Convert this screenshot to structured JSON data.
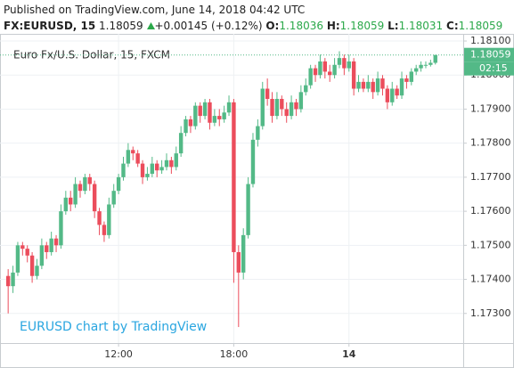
{
  "header": {
    "published": "Published on TradingView.com, June 14, 2018 04:42 UTC",
    "symbol": "FX:EURUSD, 15",
    "price": "1.18059",
    "change": "+0.00145 (+0.12%)",
    "ohlc": [
      {
        "label": "O:",
        "value": "1.18036"
      },
      {
        "label": "H:",
        "value": "1.18059"
      },
      {
        "label": "L:",
        "value": "1.18031"
      },
      {
        "label": "C:",
        "value": "1.18059"
      }
    ]
  },
  "chart_data": {
    "type": "candlestick",
    "legend": "Euro Fx/U.S. Dollar, 15, FXCM",
    "watermark": "EURUSD chart by TradingView",
    "up_color": "#53b987",
    "down_color": "#eb4d5c",
    "open": [
      1.1741,
      1.1738,
      1.1742,
      1.175,
      1.1749,
      1.1747,
      1.1741,
      1.1744,
      1.175,
      1.1748,
      1.1752,
      1.175,
      1.176,
      1.1764,
      1.1762,
      1.1768,
      1.1766,
      1.177,
      1.1768,
      1.176,
      1.1756,
      1.1753,
      1.1762,
      1.1766,
      1.177,
      1.1774,
      1.1778,
      1.1777,
      1.1774,
      1.177,
      1.1771,
      1.1774,
      1.1772,
      1.1773,
      1.1775,
      1.1773,
      1.1777,
      1.1783,
      1.1787,
      1.1785,
      1.1791,
      1.1788,
      1.1792,
      1.1786,
      1.1788,
      1.1787,
      1.1789,
      1.1792,
      1.1748,
      1.1742,
      1.1753,
      1.1768,
      1.1781,
      1.1785,
      1.1796,
      1.1793,
      1.1788,
      1.1793,
      1.179,
      1.1788,
      1.1792,
      1.179,
      1.1795,
      1.1797,
      1.1802,
      1.18,
      1.1804,
      1.1801,
      1.18,
      1.1803,
      1.1805,
      1.1802,
      1.1804,
      1.1796,
      1.1798,
      1.1796,
      1.1798,
      1.1795,
      1.1799,
      1.1796,
      1.1792,
      1.1796,
      1.1794,
      1.1799,
      1.1798,
      1.1801,
      1.1802,
      1.1803,
      1.1803,
      1.18036
    ],
    "high": [
      1.1743,
      1.1744,
      1.1751,
      1.1751,
      1.175,
      1.1748,
      1.1746,
      1.1752,
      1.1751,
      1.1754,
      1.1753,
      1.1762,
      1.1766,
      1.1766,
      1.177,
      1.1769,
      1.1771,
      1.1771,
      1.1769,
      1.1761,
      1.1757,
      1.1764,
      1.1768,
      1.1771,
      1.1776,
      1.178,
      1.1779,
      1.1778,
      1.1775,
      1.1773,
      1.1776,
      1.1775,
      1.1775,
      1.1777,
      1.1776,
      1.1779,
      1.1785,
      1.1788,
      1.1788,
      1.1792,
      1.1792,
      1.1793,
      1.1793,
      1.179,
      1.179,
      1.1791,
      1.1794,
      1.1793,
      1.175,
      1.1755,
      1.177,
      1.1783,
      1.1787,
      1.1798,
      1.1799,
      1.1795,
      1.1795,
      1.1794,
      1.1792,
      1.1794,
      1.1793,
      1.1797,
      1.1799,
      1.1803,
      1.1803,
      1.1806,
      1.1805,
      1.1803,
      1.1805,
      1.1807,
      1.1806,
      1.1806,
      1.1805,
      1.18,
      1.1799,
      1.18,
      1.1799,
      1.1801,
      1.18,
      1.1797,
      1.1798,
      1.1797,
      1.1801,
      1.18,
      1.1802,
      1.1803,
      1.1804,
      1.1804,
      1.18045,
      1.18059
    ],
    "low": [
      1.173,
      1.1736,
      1.1741,
      1.1747,
      1.1745,
      1.1739,
      1.174,
      1.1743,
      1.1746,
      1.1747,
      1.1748,
      1.1749,
      1.1759,
      1.176,
      1.1761,
      1.1764,
      1.1765,
      1.1766,
      1.1758,
      1.1753,
      1.1751,
      1.1752,
      1.1761,
      1.1765,
      1.1769,
      1.1773,
      1.1775,
      1.1773,
      1.1768,
      1.1769,
      1.177,
      1.177,
      1.1771,
      1.1772,
      1.1771,
      1.1772,
      1.1776,
      1.1782,
      1.1783,
      1.1784,
      1.1786,
      1.1787,
      1.1784,
      1.1785,
      1.1785,
      1.1786,
      1.1788,
      1.1739,
      1.1726,
      1.174,
      1.1752,
      1.1767,
      1.1779,
      1.1784,
      1.1791,
      1.1786,
      1.1787,
      1.1788,
      1.1786,
      1.1787,
      1.1788,
      1.1789,
      1.1794,
      1.1796,
      1.1798,
      1.1799,
      1.1799,
      1.1798,
      1.1799,
      1.1802,
      1.18,
      1.1801,
      1.1794,
      1.1795,
      1.1795,
      1.1795,
      1.1793,
      1.1794,
      1.1794,
      1.179,
      1.1791,
      1.1793,
      1.1793,
      1.1796,
      1.1797,
      1.18,
      1.1801,
      1.1802,
      1.18025,
      1.18031
    ],
    "close": [
      1.1738,
      1.1742,
      1.175,
      1.1749,
      1.1747,
      1.1741,
      1.1744,
      1.175,
      1.1748,
      1.1752,
      1.175,
      1.176,
      1.1764,
      1.1762,
      1.1768,
      1.1766,
      1.177,
      1.1768,
      1.176,
      1.1756,
      1.1753,
      1.1762,
      1.1766,
      1.177,
      1.1774,
      1.1778,
      1.1777,
      1.1774,
      1.177,
      1.1771,
      1.1774,
      1.1772,
      1.1773,
      1.1775,
      1.1773,
      1.1777,
      1.1783,
      1.1787,
      1.1785,
      1.1791,
      1.1788,
      1.1792,
      1.1786,
      1.1788,
      1.1787,
      1.1789,
      1.1792,
      1.1748,
      1.1742,
      1.1753,
      1.1768,
      1.1781,
      1.1785,
      1.1796,
      1.1793,
      1.1788,
      1.1793,
      1.179,
      1.1788,
      1.1792,
      1.179,
      1.1795,
      1.1797,
      1.1802,
      1.18,
      1.1804,
      1.1801,
      1.18,
      1.1803,
      1.1805,
      1.1802,
      1.1804,
      1.1796,
      1.1798,
      1.1796,
      1.1798,
      1.1795,
      1.1799,
      1.1796,
      1.1792,
      1.1796,
      1.1794,
      1.1799,
      1.1798,
      1.1801,
      1.1802,
      1.1803,
      1.1803,
      1.18036,
      1.18059
    ],
    "ylim": [
      1.17213,
      1.18121
    ],
    "yticks": [
      {
        "value": 1.181,
        "label": "1.18100"
      },
      {
        "value": 1.18,
        "label": "1.18000"
      },
      {
        "value": 1.179,
        "label": "1.17900"
      },
      {
        "value": 1.178,
        "label": "1.17800"
      },
      {
        "value": 1.177,
        "label": "1.17700"
      },
      {
        "value": 1.176,
        "label": "1.17600"
      },
      {
        "value": 1.175,
        "label": "1.17500"
      },
      {
        "value": 1.174,
        "label": "1.17400"
      },
      {
        "value": 1.173,
        "label": "1.17300"
      }
    ],
    "xlim": [
      -1.7,
      94.8
    ],
    "xticks": [
      {
        "value": 23,
        "label": "12:00"
      },
      {
        "value": 47,
        "label": "18:00"
      },
      {
        "value": 71,
        "label": "14"
      }
    ],
    "last_price": 1.18059,
    "countdown": "02:15",
    "grid": true
  }
}
